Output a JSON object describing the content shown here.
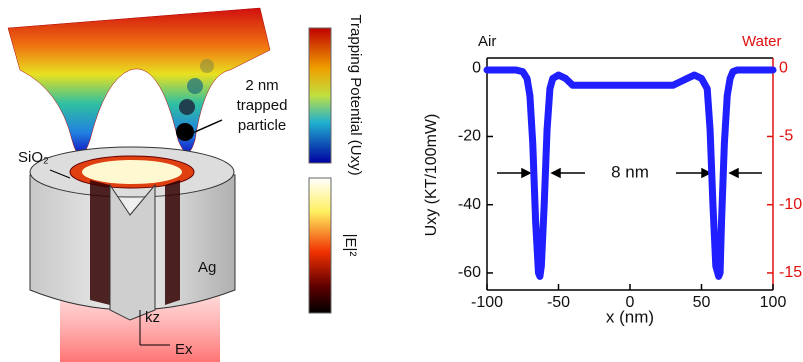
{
  "illustration": {
    "colorbar_top_label": "Trapping Potential (Uxy)",
    "colorbar_bottom_label": "|E|²",
    "particle_label": [
      "2 nm",
      "trapped",
      "particle"
    ],
    "shell_label": "SiO₂",
    "core_label": "Ag",
    "k_label": "kz",
    "e_label": "Ex"
  },
  "chart_data": {
    "type": "line",
    "xlabel": "x (nm)",
    "ylabel": "Uxy (KT/100mW)",
    "y_title": "Air",
    "y2_title": "Water",
    "annotation": "8 nm",
    "x": [
      -100,
      -90,
      -80,
      -75,
      -72,
      -70,
      -68,
      -66,
      -64,
      -63,
      -62,
      -60,
      -58,
      -56,
      -54,
      -50,
      -45,
      -40,
      -30,
      -20,
      -10,
      0,
      10,
      20,
      30,
      35,
      40,
      45,
      50,
      54,
      56,
      58,
      60,
      62,
      63,
      64,
      66,
      68,
      70,
      72,
      75,
      80,
      90,
      100
    ],
    "values": [
      -0.5,
      -0.5,
      -0.5,
      -1,
      -3,
      -8,
      -22,
      -45,
      -60,
      -61,
      -58,
      -40,
      -18,
      -6,
      -3,
      -2,
      -3,
      -5,
      -5,
      -5,
      -5,
      -5,
      -5,
      -5,
      -5,
      -4,
      -3,
      -2,
      -3,
      -6,
      -18,
      -40,
      -58,
      -61,
      -60,
      -45,
      -22,
      -8,
      -3,
      -1,
      -0.5,
      -0.5,
      -0.5,
      -0.5
    ],
    "color": "#1f1fff",
    "y2color": "#e01010",
    "xlim": [
      -100,
      100
    ],
    "xticks": [
      -100,
      -50,
      0,
      50,
      100
    ],
    "ylim": [
      -65,
      3
    ],
    "yticks": [
      0,
      -20,
      -40,
      -60
    ],
    "y2lim": [
      -16.25,
      0.75
    ],
    "y2ticks": [
      0,
      -5,
      -10,
      -15
    ]
  }
}
